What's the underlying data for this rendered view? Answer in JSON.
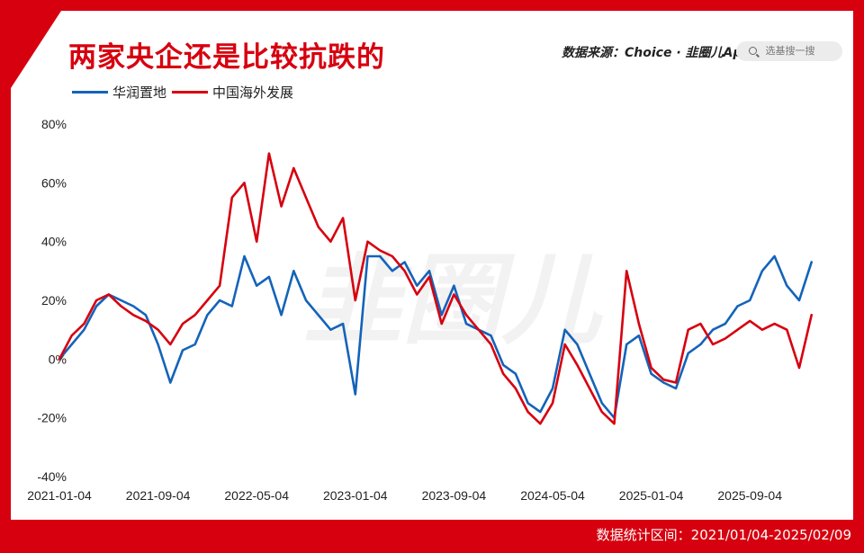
{
  "header": {
    "title": "两家央企还是比较抗跌的",
    "source": "数据来源：Choice · 韭圈儿App",
    "search_placeholder": "选基搜一搜"
  },
  "footer": {
    "range_text": "数据统计区间：2021/01/04-2025/02/09"
  },
  "watermark": "韭圈儿",
  "colors": {
    "frame": "#d7000f",
    "series1": "#1463b9",
    "series2": "#d7000f"
  },
  "chart_data": {
    "type": "line",
    "title": "两家央企还是比较抗跌的",
    "xlabel": "",
    "ylabel": "",
    "ylim": [
      -40,
      80
    ],
    "yticks": [
      "80%",
      "60%",
      "40%",
      "20%",
      "0%",
      "-20%",
      "-40%"
    ],
    "xticks": [
      "2021-01-04",
      "2021-09-04",
      "2022-05-04",
      "2023-01-04",
      "2023-09-04",
      "2024-05-04",
      "2025-01-04",
      "2025-09-04"
    ],
    "grid": false,
    "legend": "top-left",
    "x": [
      "2021-01",
      "2021-02",
      "2021-03",
      "2021-04",
      "2021-05",
      "2021-06",
      "2021-07",
      "2021-08",
      "2021-09",
      "2021-10",
      "2021-11",
      "2021-12",
      "2022-01",
      "2022-02",
      "2022-03",
      "2022-04",
      "2022-05",
      "2022-06",
      "2022-07",
      "2022-08",
      "2022-09",
      "2022-10",
      "2022-11",
      "2022-12",
      "2023-01",
      "2023-02",
      "2023-03",
      "2023-04",
      "2023-05",
      "2023-06",
      "2023-07",
      "2023-08",
      "2023-09",
      "2023-10",
      "2023-11",
      "2023-12",
      "2024-01",
      "2024-02",
      "2024-03",
      "2024-04",
      "2024-05",
      "2024-06",
      "2024-07",
      "2024-08",
      "2024-09",
      "2024-10",
      "2024-11",
      "2024-12",
      "2025-01",
      "2025-02",
      "2025-03",
      "2025-04",
      "2025-05",
      "2025-06",
      "2025-07",
      "2025-08",
      "2025-09",
      "2025-10",
      "2025-11",
      "2025-12",
      "2026-01",
      "2026-02"
    ],
    "series": [
      {
        "name": "华润置地",
        "values": [
          0,
          5,
          10,
          18,
          22,
          20,
          18,
          15,
          5,
          -8,
          3,
          5,
          15,
          20,
          18,
          35,
          25,
          28,
          15,
          30,
          20,
          15,
          10,
          12,
          -12,
          35,
          35,
          30,
          33,
          25,
          30,
          15,
          25,
          12,
          10,
          8,
          -2,
          -5,
          -15,
          -18,
          -10,
          10,
          5,
          -5,
          -15,
          -20,
          5,
          8,
          -5,
          -8,
          -10,
          2,
          5,
          10,
          12,
          18,
          20,
          30,
          35,
          25,
          20,
          33
        ]
      },
      {
        "name": "中国海外发展",
        "values": [
          0,
          8,
          12,
          20,
          22,
          18,
          15,
          13,
          10,
          5,
          12,
          15,
          20,
          25,
          55,
          60,
          40,
          70,
          52,
          65,
          55,
          45,
          40,
          48,
          20,
          40,
          37,
          35,
          30,
          22,
          28,
          12,
          22,
          15,
          10,
          5,
          -5,
          -10,
          -18,
          -22,
          -15,
          5,
          -2,
          -10,
          -18,
          -22,
          30,
          12,
          -3,
          -7,
          -8,
          10,
          12,
          5,
          7,
          10,
          13,
          10,
          12,
          10,
          -3,
          15
        ]
      }
    ]
  }
}
